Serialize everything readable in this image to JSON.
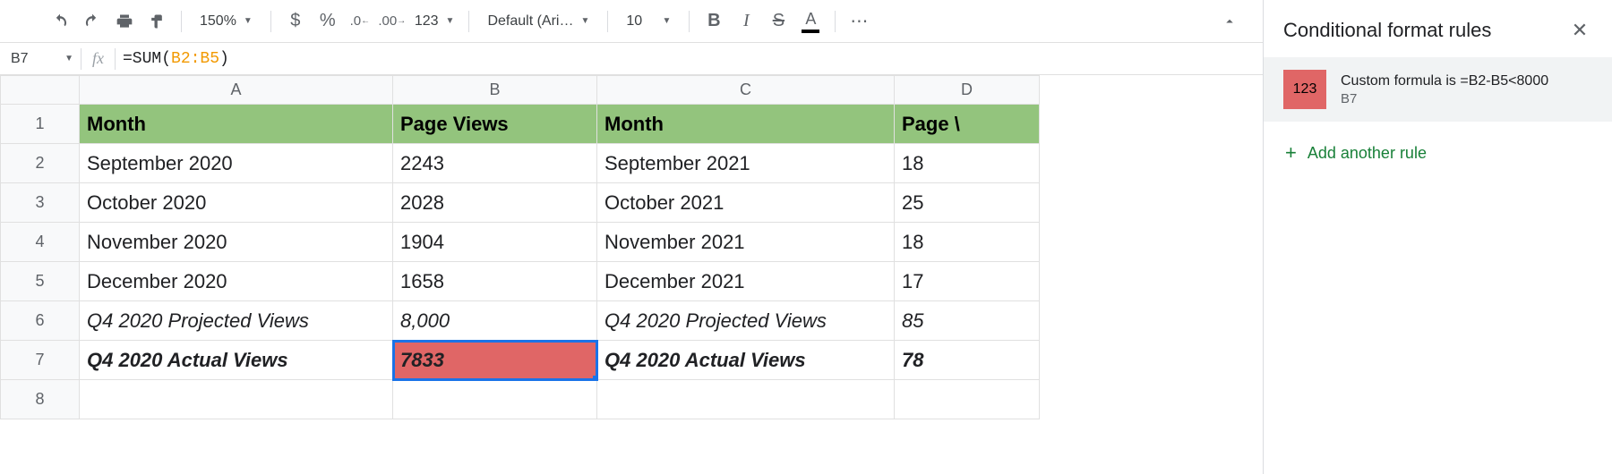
{
  "toolbar": {
    "zoom": "150%",
    "font": "Default (Ari…",
    "fontsize": "10"
  },
  "namebox": "B7",
  "formula": {
    "prefix": "=SUM(",
    "range": "B2:B5",
    "suffix": ")"
  },
  "columns": [
    "A",
    "B",
    "C",
    "D"
  ],
  "col_widths": {
    "A": 350,
    "B": 228,
    "C": 332,
    "D": 162
  },
  "header_bg": "#93c47d",
  "red_bg": "#e06666",
  "selection_color": "#1a73e8",
  "rows": [
    {
      "n": 1,
      "header": true,
      "cells": [
        "Month",
        "Page Views",
        "Month",
        "Page \\"
      ],
      "align": [
        "left",
        "center",
        "center",
        "right"
      ]
    },
    {
      "n": 2,
      "cells": [
        "September 2020",
        "2243",
        "September 2021",
        "18"
      ],
      "align": [
        "left",
        "center",
        "left",
        "right"
      ]
    },
    {
      "n": 3,
      "cells": [
        "October 2020",
        "2028",
        "October 2021",
        "25"
      ],
      "align": [
        "left",
        "center",
        "left",
        "right"
      ]
    },
    {
      "n": 4,
      "cells": [
        "November 2020",
        "1904",
        "November 2021",
        "18"
      ],
      "align": [
        "left",
        "center",
        "left",
        "right"
      ]
    },
    {
      "n": 5,
      "cells": [
        "December 2020",
        "1658",
        "December 2021",
        "17"
      ],
      "align": [
        "left",
        "center",
        "left",
        "right"
      ]
    },
    {
      "n": 6,
      "style": "italic",
      "cells": [
        "Q4 2020 Projected Views",
        "8,000",
        "Q4 2020 Projected Views",
        "85"
      ],
      "align": [
        "left",
        "center",
        "left",
        "right"
      ]
    },
    {
      "n": 7,
      "style": "bolditalic",
      "selected_col": 1,
      "red_col": 1,
      "cells": [
        "Q4 2020 Actual Views",
        "7833",
        "Q4 2020 Actual Views",
        "78"
      ],
      "align": [
        "left",
        "center",
        "left",
        "right"
      ]
    },
    {
      "n": 8,
      "cells": [
        "",
        "",
        "",
        ""
      ],
      "align": [
        "left",
        "left",
        "left",
        "left"
      ]
    }
  ],
  "panel": {
    "title": "Conditional format rules",
    "rule": {
      "swatch_text": "123",
      "swatch_bg": "#e06666",
      "line1": "Custom formula is =B2-B5<8000",
      "line2": "B7"
    },
    "add_label": "Add another rule"
  }
}
